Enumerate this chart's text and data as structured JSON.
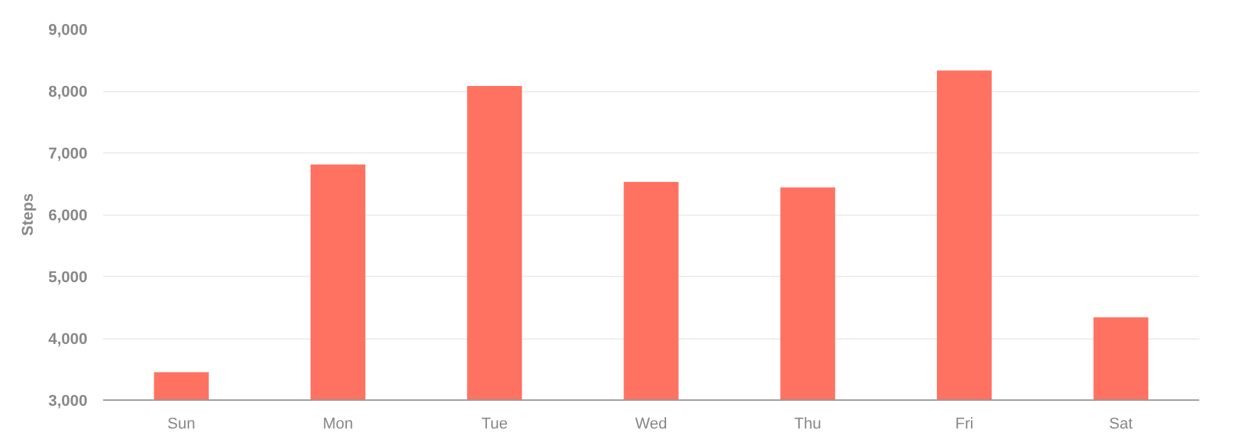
{
  "chart_data": {
    "type": "bar",
    "ylabel": "Steps",
    "categories": [
      "Sun",
      "Mon",
      "Tue",
      "Wed",
      "Thu",
      "Fri",
      "Sat"
    ],
    "values": [
      3450,
      6810,
      8080,
      6530,
      6440,
      8330,
      4340
    ],
    "color": "#ff7261",
    "ylim": [
      3000,
      9000
    ],
    "yticks": [
      {
        "value": 3000,
        "label": "3,000"
      },
      {
        "value": 4000,
        "label": "4,000"
      },
      {
        "value": 5000,
        "label": "5,000"
      },
      {
        "value": 6000,
        "label": "6,000"
      },
      {
        "value": 7000,
        "label": "7,000"
      },
      {
        "value": 8000,
        "label": "8,000"
      },
      {
        "value": 9000,
        "label": "9,000"
      }
    ],
    "grid": "y"
  }
}
